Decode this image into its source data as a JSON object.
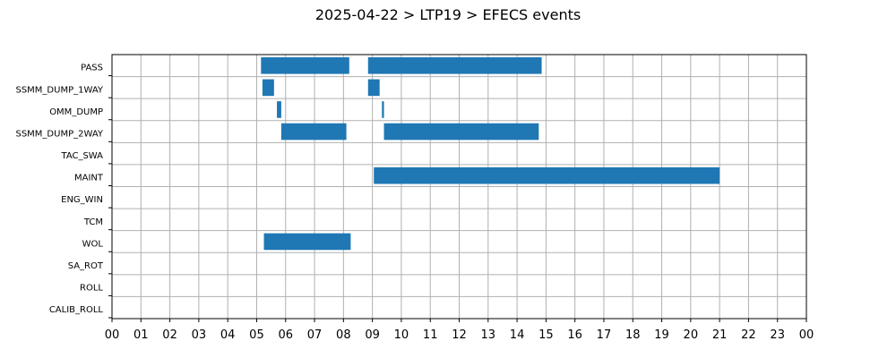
{
  "chart_data": {
    "type": "gantt",
    "title": "2025-04-22 > LTP19 > EFECS events",
    "bar_color": "#1f77b4",
    "grid": true,
    "xlim": [
      0,
      24
    ],
    "x_tick_labels": [
      "00",
      "01",
      "02",
      "03",
      "04",
      "05",
      "06",
      "07",
      "08",
      "09",
      "10",
      "11",
      "12",
      "13",
      "14",
      "15",
      "16",
      "17",
      "18",
      "19",
      "20",
      "21",
      "22",
      "23",
      "00"
    ],
    "categories": [
      "PASS",
      "SSMM_DUMP_1WAY",
      "OMM_DUMP",
      "SSMM_DUMP_2WAY",
      "TAC_SWA",
      "MAINT",
      "ENG_WIN",
      "TCM",
      "WOL",
      "SA_ROT",
      "ROLL",
      "CALIB_ROLL"
    ],
    "events": [
      {
        "category": "PASS",
        "start": 5.15,
        "end": 8.2
      },
      {
        "category": "PASS",
        "start": 8.85,
        "end": 14.85
      },
      {
        "category": "SSMM_DUMP_1WAY",
        "start": 5.2,
        "end": 5.6
      },
      {
        "category": "SSMM_DUMP_1WAY",
        "start": 8.85,
        "end": 9.25
      },
      {
        "category": "OMM_DUMP",
        "start": 5.7,
        "end": 5.85
      },
      {
        "category": "OMM_DUMP",
        "start": 9.33,
        "end": 9.4
      },
      {
        "category": "SSMM_DUMP_2WAY",
        "start": 5.85,
        "end": 8.1
      },
      {
        "category": "SSMM_DUMP_2WAY",
        "start": 9.4,
        "end": 14.75
      },
      {
        "category": "MAINT",
        "start": 9.05,
        "end": 21.0
      },
      {
        "category": "WOL",
        "start": 5.25,
        "end": 8.25
      }
    ]
  }
}
